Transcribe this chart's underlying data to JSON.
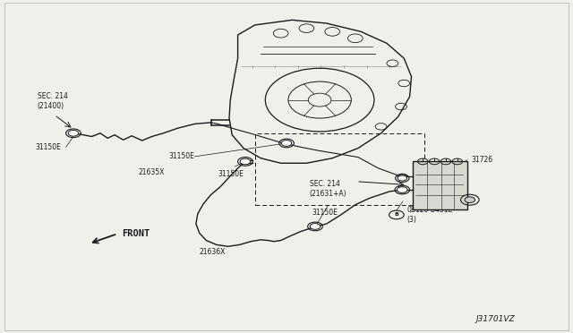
{
  "bg_color": "#f0f0eb",
  "line_color": "#1a1a1a",
  "labels": {
    "sec214_21400": "SEC. 214\n(21400)",
    "sec214_21631A": "SEC. 214\n(21631+A)",
    "part_31150E_1": "31150E",
    "part_31150E_2": "31150E",
    "part_31150E_3": "31150E",
    "part_31150E_4": "31150E",
    "part_21635X": "21635X",
    "part_21636X": "21636X",
    "part_31726": "31726",
    "part_0B120_B451E": "0B120-B451E\n(3)",
    "front_label": "FRONT",
    "diagram_code": "J31701VZ"
  }
}
